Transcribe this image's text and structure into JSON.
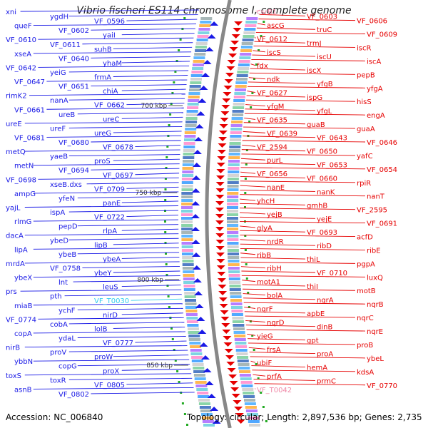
{
  "title": "Vibrio fischeri ES114 chromosome I, complete genome",
  "accession": "Accession: NC_006840",
  "topology": "Topology: circular; Length: 2,897,536 bp; Genes: 2,735",
  "colors": {
    "left_strand": "#1a1ae6",
    "right_strand": "#e60000",
    "cyan_label": "#33ccee",
    "pink_label": "#f08aa8",
    "backbone": "#888888"
  },
  "kbp_markers": [
    "700 kbp",
    "750 kbp",
    "800 kbp",
    "850 kbp"
  ],
  "left_labels": [
    "xni",
    "ygdH",
    "VF_0596",
    "queF",
    "VF_0602",
    "yaiI",
    "VF_0610",
    "VF_0611",
    "suhB",
    "xseA",
    "VF_0640",
    "yhaM",
    "VF_0642",
    "yeiG",
    "frmA",
    "VF_0647",
    "VF_0651",
    "chiA",
    "rimK2",
    "nanA",
    "VF_0662",
    "VF_0661",
    "ureB",
    "ureC",
    "ureE",
    "ureF",
    "ureG",
    "VF_0681",
    "VF_0680",
    "VF_0678",
    "metQ",
    "yaeB",
    "proS",
    "metN",
    "VF_0694",
    "VF_0697",
    "VF_0698",
    "xseB.dxs",
    "VF_0709",
    "ampG",
    "yfeN",
    "panE",
    "yajL",
    "ispA",
    "VF_0722",
    "rlmG",
    "pepD",
    "rlpA",
    "dacA",
    "ybeD",
    "lipB",
    "lipA",
    "ybeB",
    "ybeA",
    "mrdA",
    "VF_0758",
    "ybeY",
    "ybeX",
    "lnt",
    "leuS",
    "prs",
    "pth",
    "VF_T0030",
    "miaB",
    "ychF",
    "nirD",
    "VF_0774",
    "cobA",
    "lolB",
    "copA",
    "ydaL",
    "VF_0777",
    "nirB",
    "proV",
    "proW",
    "ybbN",
    "copG",
    "proX",
    "toxS",
    "toxR",
    "VF_0805",
    "asnB",
    "VF_0802"
  ],
  "right_labels": [
    "csrB1",
    "VF_0603",
    "VF_0606",
    "ascG",
    "truC",
    "VF_0609",
    "VF_0612",
    "trmJ",
    "iscR",
    "iscS",
    "iscU",
    "iscA",
    "fdx",
    "iscX",
    "pepB",
    "ndk",
    "yfgB",
    "yfgA",
    "VF_0627",
    "ispG",
    "hisS",
    "yfgM",
    "yfgL",
    "engA",
    "VF_0635",
    "guaB",
    "guaA",
    "VF_0639",
    "VF_0643",
    "VF_0646",
    "VF_2594",
    "VF_0650",
    "yafC",
    "purL",
    "VF_0653",
    "VF_0654",
    "VF_0656",
    "VF_0660",
    "rpiR",
    "nanE",
    "nanK",
    "nanT",
    "yhcH",
    "gmhB",
    "VF_2595",
    "yejB",
    "yejE",
    "VF_0691",
    "glyA",
    "VF_0693",
    "acfD",
    "nrdR",
    "ribD",
    "ribE",
    "ribB",
    "thiL",
    "pgpA",
    "ribH",
    "VF_0710",
    "luxQ",
    "motA1",
    "thiI",
    "motB",
    "bolA",
    "nqrA",
    "nqrB",
    "nqrF",
    "apbE",
    "nqrC",
    "nqrD",
    "dinB",
    "nqrE",
    "yieG",
    "gpt",
    "proB",
    "frsA",
    "proA",
    "ybeL",
    "ubiF",
    "hemA",
    "kdsA",
    "prfA",
    "prmC",
    "VF_0770",
    "VF_T0042"
  ]
}
